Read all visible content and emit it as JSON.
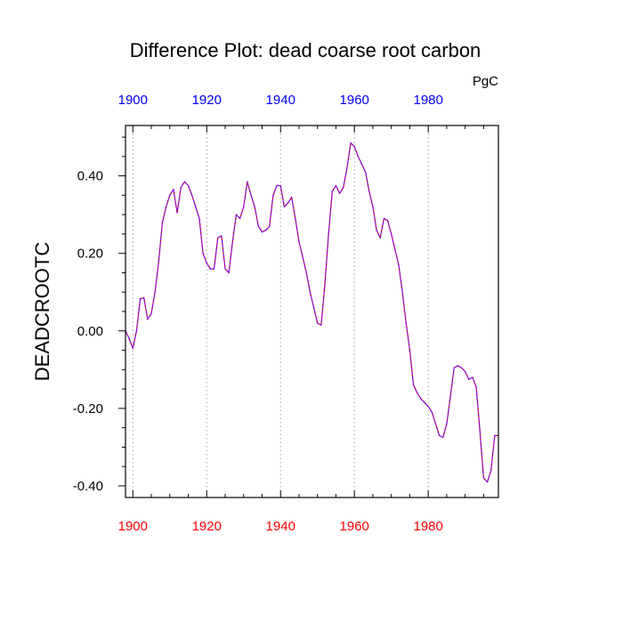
{
  "chart_data": {
    "type": "line",
    "title": "Difference Plot: dead coarse root carbon",
    "units": "PgC",
    "ylabel": "DEADCROOTC",
    "xlabel": "",
    "xlim": [
      1898,
      1999
    ],
    "ylim": [
      -0.43,
      0.53
    ],
    "x_ticks": [
      1900,
      1920,
      1940,
      1960,
      1980
    ],
    "y_ticks": [
      -0.4,
      -0.2,
      0.0,
      0.2,
      0.4
    ],
    "y_tick_labels": [
      "-0.40",
      "-0.20",
      "0.00",
      "0.20",
      "0.40"
    ],
    "grid": "vertical dotted at major x ticks",
    "series": [
      {
        "name": "DEADCROOTC difference",
        "x": [
          1898,
          1899,
          1900,
          1901,
          1902,
          1903,
          1904,
          1905,
          1906,
          1907,
          1908,
          1909,
          1910,
          1911,
          1912,
          1913,
          1914,
          1915,
          1916,
          1917,
          1918,
          1919,
          1920,
          1921,
          1922,
          1923,
          1924,
          1925,
          1926,
          1927,
          1928,
          1929,
          1930,
          1931,
          1932,
          1933,
          1934,
          1935,
          1936,
          1937,
          1938,
          1939,
          1940,
          1941,
          1942,
          1943,
          1944,
          1945,
          1946,
          1947,
          1948,
          1949,
          1950,
          1951,
          1952,
          1953,
          1954,
          1955,
          1956,
          1957,
          1958,
          1959,
          1960,
          1961,
          1962,
          1963,
          1964,
          1965,
          1966,
          1967,
          1968,
          1969,
          1970,
          1971,
          1972,
          1973,
          1974,
          1975,
          1976,
          1977,
          1978,
          1979,
          1980,
          1981,
          1982,
          1983,
          1984,
          1985,
          1986,
          1987,
          1988,
          1989,
          1990,
          1991,
          1992,
          1993,
          1994,
          1995,
          1996,
          1997,
          1998,
          1999
        ],
        "values": [
          0.0,
          -0.02,
          -0.045,
          0.0,
          0.083,
          0.085,
          0.03,
          0.045,
          0.1,
          0.18,
          0.28,
          0.32,
          0.35,
          0.365,
          0.305,
          0.37,
          0.385,
          0.375,
          0.35,
          0.32,
          0.29,
          0.2,
          0.175,
          0.16,
          0.16,
          0.24,
          0.245,
          0.16,
          0.15,
          0.23,
          0.3,
          0.29,
          0.32,
          0.385,
          0.35,
          0.32,
          0.27,
          0.255,
          0.26,
          0.27,
          0.35,
          0.375,
          0.375,
          0.32,
          0.33,
          0.345,
          0.29,
          0.23,
          0.19,
          0.15,
          0.1,
          0.06,
          0.02,
          0.015,
          0.12,
          0.25,
          0.36,
          0.375,
          0.355,
          0.37,
          0.42,
          0.485,
          0.475,
          0.45,
          0.43,
          0.41,
          0.36,
          0.32,
          0.26,
          0.24,
          0.29,
          0.285,
          0.25,
          0.21,
          0.17,
          0.1,
          0.02,
          -0.05,
          -0.14,
          -0.16,
          -0.175,
          -0.185,
          -0.195,
          -0.21,
          -0.24,
          -0.27,
          -0.275,
          -0.24,
          -0.17,
          -0.095,
          -0.09,
          -0.095,
          -0.105,
          -0.125,
          -0.12,
          -0.145,
          -0.26,
          -0.38,
          -0.39,
          -0.36,
          -0.27,
          -0.27
        ],
        "color": "#7b00ff",
        "dash_color": "#d40000"
      }
    ]
  },
  "colors": {
    "bottom_ticks": "#ff0000",
    "top_ticks": "#0000ff",
    "axis": "#000000",
    "grid": "#9a9a9a"
  }
}
